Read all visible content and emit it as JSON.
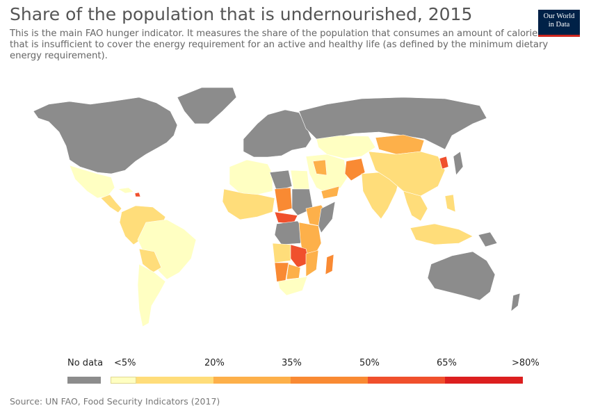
{
  "title": "Share of the population that is undernourished, 2015",
  "subtitle": "This is the main FAO hunger indicator. It measures the share of the population that consumes an amount of calories that is insufficient to cover the energy requirement for an active and healthy life (as defined by the minimum dietary energy requirement).",
  "logo": {
    "line1": "Our World",
    "line2": "in Data"
  },
  "legend": {
    "no_data_label": "No data",
    "no_data_color": "#8c8c8c",
    "bins": [
      {
        "label": "<5%",
        "color": "#ffffc2"
      },
      {
        "label": "20%",
        "color": "#ffdd7a"
      },
      {
        "label": "35%",
        "color": "#fdb04a"
      },
      {
        "label": "50%",
        "color": "#f98a33"
      },
      {
        "label": "65%",
        "color": "#f0502d"
      },
      {
        "label": ">80%",
        "color": "#dc1f1f"
      }
    ]
  },
  "map_data": {
    "year": 2015,
    "indicator": "Share of the population that is undernourished",
    "unit": "%",
    "regions": [
      {
        "region": "North America",
        "category": "no data"
      },
      {
        "region": "Greenland",
        "category": "no data"
      },
      {
        "region": "Europe",
        "category": "no data"
      },
      {
        "region": "Russia",
        "category": "no data"
      },
      {
        "region": "Australia",
        "category": "no data"
      },
      {
        "region": "Mexico",
        "category": "<5%"
      },
      {
        "region": "Central America",
        "category": "5-20%"
      },
      {
        "region": "Caribbean (Haiti)",
        "category": "35-50%"
      },
      {
        "region": "Andean South America",
        "category": "5-20%"
      },
      {
        "region": "Brazil",
        "category": "<5%"
      },
      {
        "region": "Southern Cone",
        "category": "<5%"
      },
      {
        "region": "Paraguay / Bolivia",
        "category": "5-20%"
      },
      {
        "region": "North Africa",
        "category": "<5%"
      },
      {
        "region": "Libya",
        "category": "no data"
      },
      {
        "region": "West Africa",
        "category": "5-20%"
      },
      {
        "region": "Chad",
        "category": "35-50%"
      },
      {
        "region": "Sudan / Somalia",
        "category": "no data"
      },
      {
        "region": "Ethiopia",
        "category": "20-35%"
      },
      {
        "region": "Central African Republic",
        "category": "50-65%"
      },
      {
        "region": "DR Congo",
        "category": "no data"
      },
      {
        "region": "East Africa",
        "category": "20-35%"
      },
      {
        "region": "Zambia / Zimbabwe",
        "category": "35-50%"
      },
      {
        "region": "Namibia",
        "category": "35-50%"
      },
      {
        "region": "South Africa",
        "category": "<5%"
      },
      {
        "region": "Madagascar",
        "category": "35-50%"
      },
      {
        "region": "Middle East",
        "category": "<5%"
      },
      {
        "region": "Yemen",
        "category": "20-35%"
      },
      {
        "region": "Iraq",
        "category": "20-35%"
      },
      {
        "region": "Afghanistan",
        "category": "35-50%"
      },
      {
        "region": "Central Asia",
        "category": "<5%"
      },
      {
        "region": "South Asia",
        "category": "5-20%"
      },
      {
        "region": "Mongolia",
        "category": "20-35%"
      },
      {
        "region": "China",
        "category": "5-20%"
      },
      {
        "region": "North Korea",
        "category": "35-50%"
      },
      {
        "region": "Southeast Asia",
        "category": "5-20%"
      },
      {
        "region": "Indonesia",
        "category": "5-20%"
      },
      {
        "region": "Papua New Guinea",
        "category": "no data"
      }
    ]
  },
  "source": "Source: UN FAO, Food Security Indicators (2017)"
}
